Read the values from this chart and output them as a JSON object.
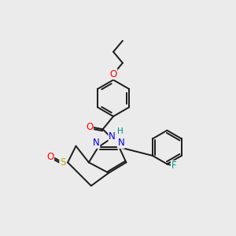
{
  "bg_color": "#ebebeb",
  "bond_color": "#1a1a1a",
  "bond_width": 1.4,
  "atom_colors": {
    "O": "#ff0000",
    "N": "#0000dd",
    "S": "#bbaa00",
    "F": "#009988",
    "H": "#008888",
    "C": "#1a1a1a"
  },
  "figsize": [
    3.0,
    3.0
  ],
  "dpi": 100,
  "xlim": [
    0,
    10
  ],
  "ylim": [
    0,
    10
  ],
  "font_size": 7.5
}
